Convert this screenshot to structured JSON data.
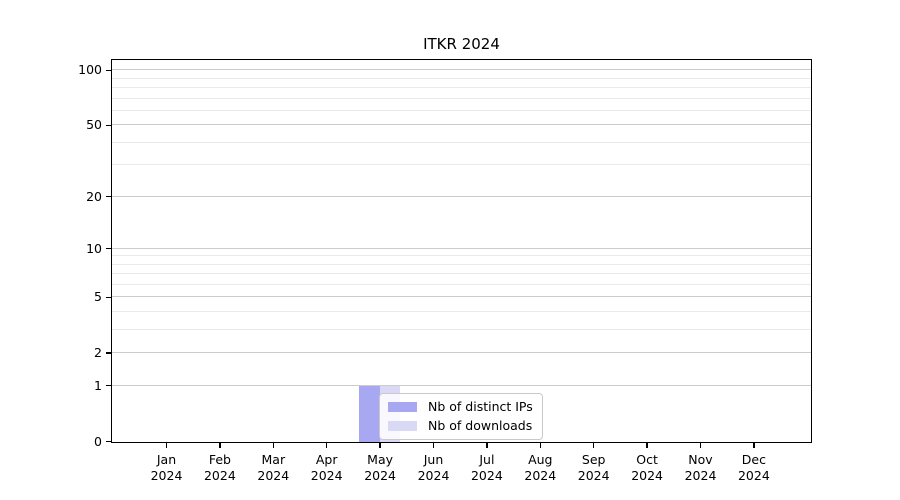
{
  "figure": {
    "background_color": "#ffffff"
  },
  "chart_data": {
    "type": "bar",
    "title": "ITKR 2024",
    "xlabel": "",
    "ylabel": "",
    "categories": [
      "Jan 2024",
      "Feb 2024",
      "Mar 2024",
      "Apr 2024",
      "May 2024",
      "Jun 2024",
      "Jul 2024",
      "Aug 2024",
      "Sep 2024",
      "Oct 2024",
      "Nov 2024",
      "Dec 2024"
    ],
    "x_tick_labels": [
      {
        "month": "Jan",
        "year": "2024"
      },
      {
        "month": "Feb",
        "year": "2024"
      },
      {
        "month": "Mar",
        "year": "2024"
      },
      {
        "month": "Apr",
        "year": "2024"
      },
      {
        "month": "May",
        "year": "2024"
      },
      {
        "month": "Jun",
        "year": "2024"
      },
      {
        "month": "Jul",
        "year": "2024"
      },
      {
        "month": "Aug",
        "year": "2024"
      },
      {
        "month": "Sep",
        "year": "2024"
      },
      {
        "month": "Oct",
        "year": "2024"
      },
      {
        "month": "Nov",
        "year": "2024"
      },
      {
        "month": "Dec",
        "year": "2024"
      }
    ],
    "series": [
      {
        "name": "Nb of distinct IPs",
        "color": "#a8a8f2",
        "values": [
          0,
          0,
          0,
          0,
          1,
          0,
          0,
          0,
          0,
          0,
          0,
          0
        ]
      },
      {
        "name": "Nb of downloads",
        "color": "#d9d9f6",
        "values": [
          0,
          0,
          0,
          0,
          1,
          0,
          0,
          0,
          0,
          0,
          0,
          0
        ]
      }
    ],
    "y_scale": "log1p",
    "ylim": [
      0,
      113
    ],
    "y_axis_ticks": [
      0,
      1,
      2,
      5,
      10,
      20,
      50,
      100
    ],
    "y_gridlines_major": [
      1,
      2,
      5,
      10,
      20,
      50,
      100
    ],
    "y_gridlines_minor": [
      3,
      4,
      6,
      7,
      8,
      9,
      30,
      40,
      60,
      70,
      80,
      90
    ],
    "grid_major_color": "#cccccc",
    "grid_minor_color": "#eaeaea",
    "legend_position": "lower center",
    "legend_entries": [
      "Nb of distinct IPs",
      "Nb of downloads"
    ]
  }
}
